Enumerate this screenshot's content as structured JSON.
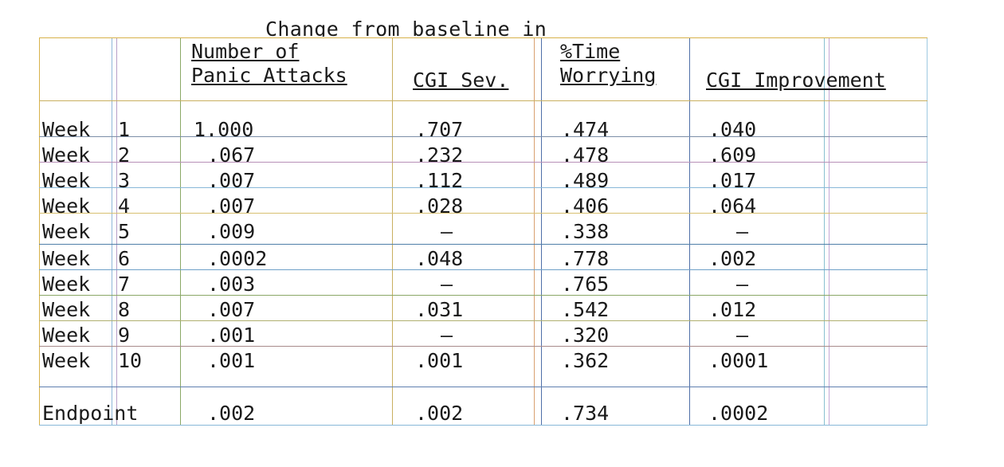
{
  "title_cut": "Change from baseline in",
  "headers": {
    "panic_line1": "Number of",
    "panic_line2": "Panic Attacks",
    "cgi_sev": "CGI Sev.",
    "time_line1": "%Time",
    "time_line2": "Worrying",
    "cgi_imp": "CGI Improvement"
  },
  "rows": [
    {
      "label": "Week",
      "num": "1",
      "panic": "1.000",
      "sev": ".707",
      "time": ".474",
      "imp": ".040"
    },
    {
      "label": "Week",
      "num": "2",
      "panic": ".067",
      "sev": ".232",
      "time": ".478",
      "imp": ".609"
    },
    {
      "label": "Week",
      "num": "3",
      "panic": ".007",
      "sev": ".112",
      "time": ".489",
      "imp": ".017"
    },
    {
      "label": "Week",
      "num": "4",
      "panic": ".007",
      "sev": ".028",
      "time": ".406",
      "imp": ".064"
    },
    {
      "label": "Week",
      "num": "5",
      "panic": ".009",
      "sev": "–",
      "time": ".338",
      "imp": "–"
    },
    {
      "label": "Week",
      "num": "6",
      "panic": ".0002",
      "sev": ".048",
      "time": ".778",
      "imp": ".002"
    },
    {
      "label": "Week",
      "num": "7",
      "panic": ".003",
      "sev": "–",
      "time": ".765",
      "imp": "–"
    },
    {
      "label": "Week",
      "num": "8",
      "panic": ".007",
      "sev": ".031",
      "time": ".542",
      "imp": ".012"
    },
    {
      "label": "Week",
      "num": "9",
      "panic": ".001",
      "sev": "–",
      "time": ".320",
      "imp": "–"
    },
    {
      "label": "Week",
      "num": "10",
      "panic": ".001",
      "sev": ".001",
      "time": ".362",
      "imp": ".0001"
    }
  ],
  "endpoint": {
    "label": "Endpoint",
    "panic": ".002",
    "sev": ".002",
    "time": ".734",
    "imp": ".0002"
  }
}
